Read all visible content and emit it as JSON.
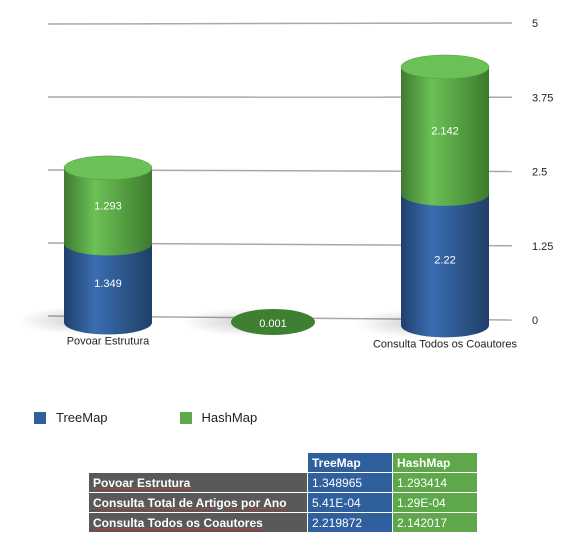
{
  "chart_data": {
    "type": "bar",
    "stacked": true,
    "style": "3d-cylinder",
    "categories": [
      "Povoar Estrutura",
      "Consulta Total de Artigos por Ano",
      "Consulta Todos os Coautores"
    ],
    "visible_category_labels": [
      "Povoar Estrutura",
      "",
      "Consulta Todos os Coautores"
    ],
    "series": [
      {
        "name": "TreeMap",
        "values": [
          1.349,
          0.000541,
          2.22
        ],
        "color": "#2f5f9c"
      },
      {
        "name": "HashMap",
        "values": [
          1.293,
          0.000129,
          2.142
        ],
        "color": "#5ea84b"
      }
    ],
    "data_labels": {
      "TreeMap": [
        "1.349",
        "0.001",
        "2.22"
      ],
      "HashMap": [
        "1.293",
        "",
        "2.142"
      ]
    },
    "y_ticks": [
      "0",
      "1.25",
      "2.5",
      "3.75",
      "5"
    ],
    "ylim": [
      0,
      5
    ],
    "grid": true,
    "legend_position": "bottom-left"
  },
  "legend": [
    {
      "label": "TreeMap",
      "color": "#2f5f9c"
    },
    {
      "label": "HashMap",
      "color": "#5ea84b"
    }
  ],
  "table": {
    "headers": [
      "TreeMap",
      "HashMap"
    ],
    "rows": [
      {
        "label": "Povoar Estrutura",
        "treemap": "1.348965",
        "hashmap": "1.293414"
      },
      {
        "label": "Consulta Total de Artigos por Ano",
        "treemap": "5.41E-04",
        "hashmap": "1.29E-04"
      },
      {
        "label": "Consulta Todos os Coautores",
        "treemap": "2.219872",
        "hashmap": "2.142017"
      }
    ]
  }
}
